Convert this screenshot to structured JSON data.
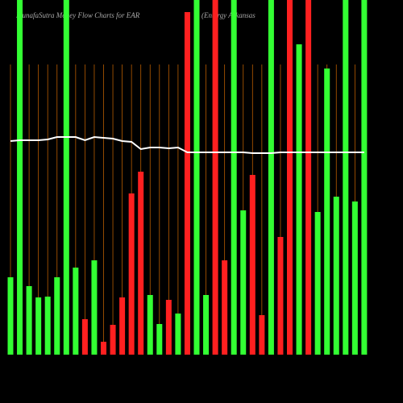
{
  "chart_data": {
    "type": "bar",
    "title": "MunafaSutra  Money Flow  Charts for EAR",
    "subtitle": "(Entergy Arkansas",
    "categories": [
      null,
      null,
      null,
      null,
      null,
      null,
      null,
      null,
      null,
      null,
      null,
      null,
      null,
      null,
      null,
      null,
      null,
      null,
      null,
      null,
      null,
      null,
      null,
      null,
      null,
      null,
      null,
      null,
      null,
      null,
      null,
      null,
      null,
      null,
      null,
      null,
      null,
      null,
      null
    ],
    "series": [
      {
        "values": [
          96,
          440,
          85,
          71,
          72,
          96,
          440,
          108,
          44,
          117,
          16,
          37,
          71,
          200,
          227,
          74,
          38,
          68,
          51,
          425,
          440,
          74,
          440,
          117,
          440,
          179,
          223,
          49,
          440,
          146,
          440,
          385,
          440,
          177,
          355,
          196,
          440,
          190,
          440
        ],
        "colors": [
          "#33ff33",
          "#33ff33",
          "#33ff33",
          "#33ff33",
          "#33ff33",
          "#33ff33",
          "#33ff33",
          "#33ff33",
          "#ff2020",
          "#33ff33",
          "#ff2020",
          "#ff2020",
          "#ff2020",
          "#ff2020",
          "#ff2020",
          "#33ff33",
          "#33ff33",
          "#ff2020",
          "#33ff33",
          "#ff2020",
          "#33ff33",
          "#33ff33",
          "#ff2020",
          "#ff2020",
          "#33ff33",
          "#33ff33",
          "#ff2020",
          "#ff2020",
          "#33ff33",
          "#ff2020",
          "#ff2020",
          "#33ff33",
          "#ff2020",
          "#33ff33",
          "#33ff33",
          "#33ff33",
          "#33ff33",
          "#33ff33",
          "#33ff33"
        ]
      },
      {
        "type": "line",
        "color": "#ffffff",
        "values": [
          265,
          266,
          266,
          266,
          267,
          270,
          270,
          270,
          266,
          270,
          269,
          268,
          265,
          264,
          255,
          257,
          257,
          256,
          257,
          251,
          251,
          251,
          251,
          251,
          251,
          251,
          250,
          250,
          250,
          251,
          251,
          251,
          251,
          251,
          251,
          251,
          251,
          251,
          251
        ]
      }
    ],
    "ylim": [
      0,
      440
    ],
    "grid_color": "#b85c00"
  }
}
